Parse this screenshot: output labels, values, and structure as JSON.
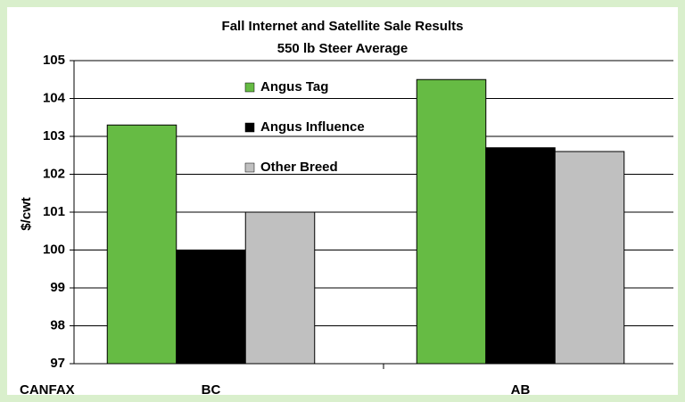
{
  "chart_data": {
    "type": "bar",
    "title": "Fall Internet and Satellite Sale Results",
    "subtitle": "550 lb Steer Average",
    "y_label": "$/cwt",
    "annotation": "CANFAX",
    "categories": [
      "BC",
      "AB"
    ],
    "series": [
      {
        "name": "Angus Tag",
        "color": "#66bb44",
        "values": [
          103.3,
          104.5
        ]
      },
      {
        "name": "Angus Influence",
        "color": "#000000",
        "values": [
          100.0,
          102.7
        ]
      },
      {
        "name": "Other Breed",
        "color": "#c0c0c0",
        "values": [
          101.0,
          102.6
        ]
      }
    ],
    "ylim": [
      97,
      105
    ],
    "yticks": [
      97,
      98,
      99,
      100,
      101,
      102,
      103,
      104,
      105
    ],
    "grid": true,
    "legend": "top"
  }
}
